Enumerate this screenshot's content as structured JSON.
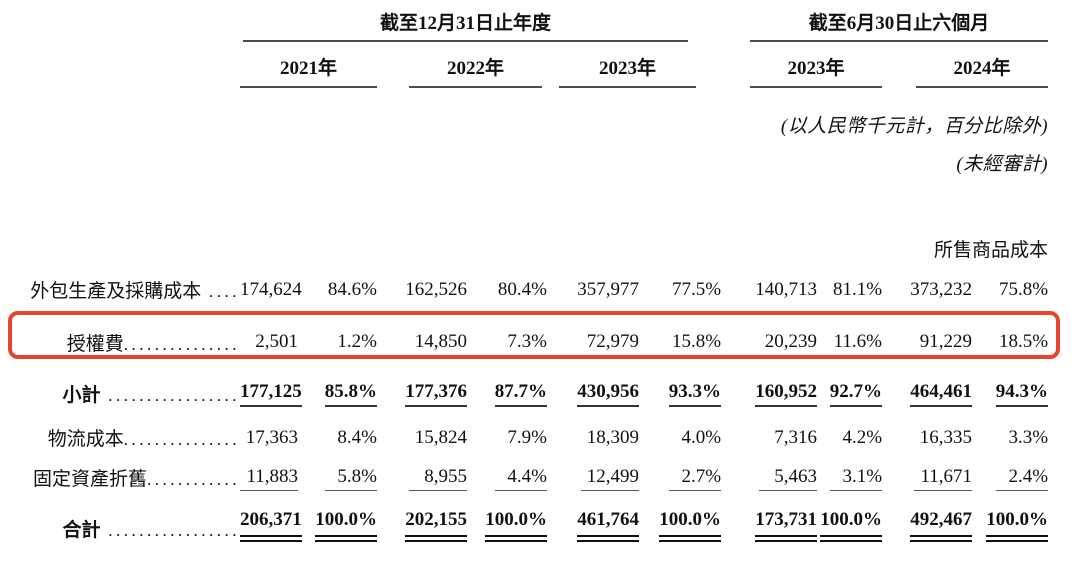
{
  "header": {
    "annual_group": "截至12月31日止年度",
    "interim_group": "截至6月30日止六個月",
    "annual_years": [
      "2021年",
      "2022年",
      "2023年"
    ],
    "interim_years": [
      "2023年",
      "2024年"
    ],
    "unit_note": "(以人民幣千元計，百分比除外)",
    "unaudited_note": "(未經審計)"
  },
  "table": {
    "section_title": "所售商品成本",
    "rows": [
      {
        "label": "外包生產及採購成本",
        "leader": " ....",
        "values": [
          "174,624",
          "84.6%",
          "162,526",
          "80.4%",
          "357,977",
          "77.5%",
          "140,713",
          "81.1%",
          "373,232",
          "75.8%"
        ]
      },
      {
        "label": "授權費",
        "leader": "...............",
        "values": [
          "2,501",
          "1.2%",
          "14,850",
          "7.3%",
          "72,979",
          "15.8%",
          "20,239",
          "11.6%",
          "91,229",
          "18.5%"
        ]
      },
      {
        "label": "小計",
        "leader": " .................",
        "values": [
          "177,125",
          "85.8%",
          "177,376",
          "87.7%",
          "430,956",
          "93.3%",
          "160,952",
          "92.7%",
          "464,461",
          "94.3%"
        ]
      },
      {
        "label": "物流成本",
        "leader": "...............",
        "values": [
          "17,363",
          "8.4%",
          "15,824",
          "7.9%",
          "18,309",
          "4.0%",
          "7,316",
          "4.2%",
          "16,335",
          "3.3%"
        ]
      },
      {
        "label": "固定資產折舊",
        "leader": "............",
        "values": [
          "11,883",
          "5.8%",
          "8,955",
          "4.4%",
          "12,499",
          "2.7%",
          "5,463",
          "3.1%",
          "11,671",
          "2.4%"
        ]
      },
      {
        "label": "合計",
        "leader": " .................",
        "values": [
          "206,371",
          "100.0%",
          "202,155",
          "100.0%",
          "461,764",
          "100.0%",
          "173,731",
          "100.0%",
          "492,467",
          "100.0%"
        ]
      }
    ]
  },
  "highlight_color": "#e8432b"
}
